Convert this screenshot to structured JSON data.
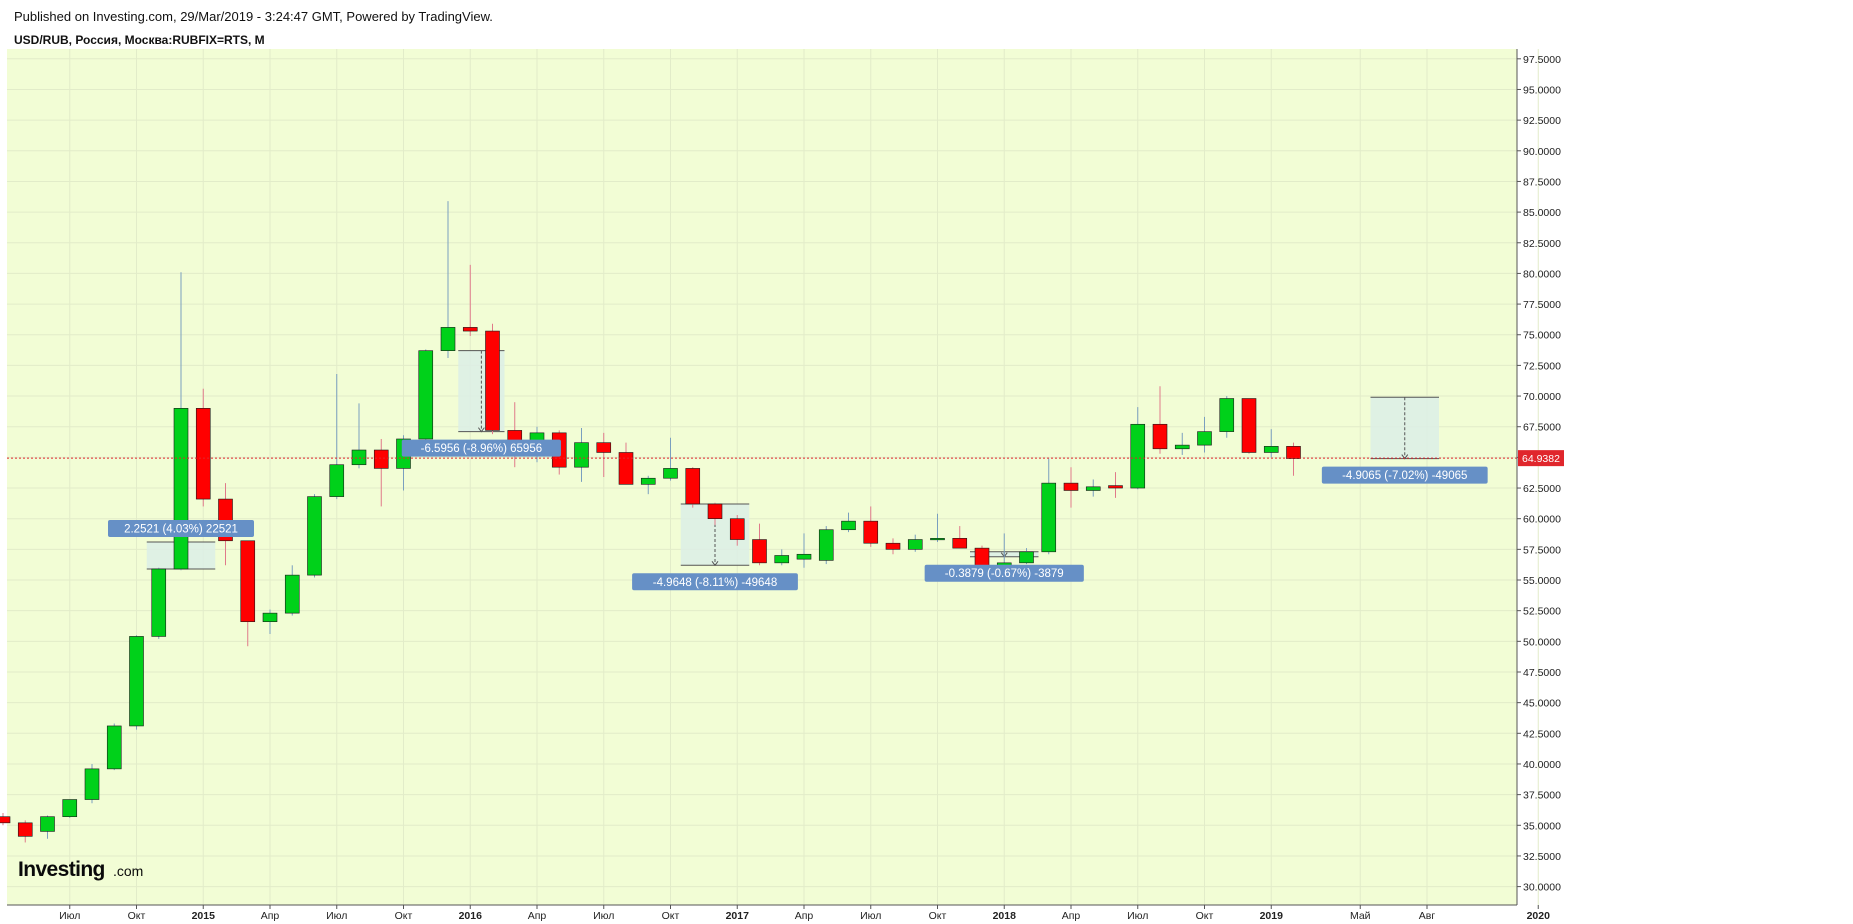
{
  "header": {
    "published": "Published on Investing.com, 29/Mar/2019 - 3:24:47 GMT, Powered by TradingView.",
    "symbol": "USD/RUB, Россия, Москва:RUBFIX=RTS, M"
  },
  "logo": {
    "main": "Investing",
    "suffix": ".com"
  },
  "colors": {
    "background": "#f2fdd5",
    "up": "#00d11a",
    "down": "#ff0000",
    "price_line": "#e0262c",
    "measure_label": "#6690c6",
    "measure_zone": "#dcefe6"
  },
  "chart_data": {
    "type": "candlestick",
    "timeframe": "M",
    "ylim": [
      28.5,
      98.3
    ],
    "y_ticks": [
      "97.5000",
      "95.0000",
      "92.5000",
      "90.0000",
      "87.5000",
      "85.0000",
      "82.5000",
      "80.0000",
      "77.5000",
      "75.0000",
      "72.5000",
      "70.0000",
      "67.5000",
      "65.0000",
      "62.5000",
      "60.0000",
      "57.5000",
      "55.0000",
      "52.5000",
      "50.0000",
      "47.5000",
      "45.0000",
      "42.5000",
      "40.0000",
      "37.5000",
      "35.0000",
      "32.5000",
      "30.0000"
    ],
    "x_ticks": [
      {
        "label": "Июл",
        "bold": false
      },
      {
        "label": "Окт",
        "bold": false
      },
      {
        "label": "2015",
        "bold": true
      },
      {
        "label": "Апр",
        "bold": false
      },
      {
        "label": "Июл",
        "bold": false
      },
      {
        "label": "Окт",
        "bold": false
      },
      {
        "label": "2016",
        "bold": true
      },
      {
        "label": "Апр",
        "bold": false
      },
      {
        "label": "Июл",
        "bold": false
      },
      {
        "label": "Окт",
        "bold": false
      },
      {
        "label": "2017",
        "bold": true
      },
      {
        "label": "Апр",
        "bold": false
      },
      {
        "label": "Июл",
        "bold": false
      },
      {
        "label": "Окт",
        "bold": false
      },
      {
        "label": "2018",
        "bold": true
      },
      {
        "label": "Апр",
        "bold": false
      },
      {
        "label": "Июл",
        "bold": false
      },
      {
        "label": "Окт",
        "bold": false
      },
      {
        "label": "2019",
        "bold": true
      },
      {
        "label": "Май",
        "bold": false
      },
      {
        "label": "Авг",
        "bold": false
      },
      {
        "label": "2020",
        "bold": true
      }
    ],
    "last_price": "64.9382",
    "last_price_value": 64.9382,
    "candles": [
      {
        "t": "2014-04",
        "o": 35.7,
        "h": 36.0,
        "l": 35.0,
        "c": 35.2
      },
      {
        "t": "2014-05",
        "o": 35.2,
        "h": 35.4,
        "l": 33.6,
        "c": 34.1
      },
      {
        "t": "2014-06",
        "o": 34.5,
        "h": 35.8,
        "l": 33.9,
        "c": 35.7
      },
      {
        "t": "2014-07",
        "o": 35.7,
        "h": 37.1,
        "l": 35.6,
        "c": 37.1
      },
      {
        "t": "2014-08",
        "o": 37.1,
        "h": 40.0,
        "l": 36.8,
        "c": 39.6
      },
      {
        "t": "2014-09",
        "o": 39.6,
        "h": 43.3,
        "l": 39.5,
        "c": 43.1
      },
      {
        "t": "2014-10",
        "o": 43.1,
        "h": 50.5,
        "l": 42.8,
        "c": 50.4
      },
      {
        "t": "2014-11",
        "o": 50.4,
        "h": 56.0,
        "l": 50.2,
        "c": 55.9
      },
      {
        "t": "2014-12",
        "o": 55.9,
        "h": 80.1,
        "l": 55.8,
        "c": 69.0
      },
      {
        "t": "2015-01",
        "o": 69.0,
        "h": 70.6,
        "l": 61.0,
        "c": 61.6
      },
      {
        "t": "2015-02",
        "o": 61.6,
        "h": 62.9,
        "l": 56.2,
        "c": 58.2
      },
      {
        "t": "2015-03",
        "o": 58.2,
        "h": 58.2,
        "l": 49.6,
        "c": 51.6
      },
      {
        "t": "2015-04",
        "o": 51.6,
        "h": 52.6,
        "l": 50.6,
        "c": 52.3
      },
      {
        "t": "2015-05",
        "o": 52.3,
        "h": 56.2,
        "l": 52.1,
        "c": 55.4
      },
      {
        "t": "2015-06",
        "o": 55.4,
        "h": 62.0,
        "l": 55.2,
        "c": 61.8
      },
      {
        "t": "2015-07",
        "o": 61.8,
        "h": 71.8,
        "l": 61.6,
        "c": 64.4
      },
      {
        "t": "2015-08",
        "o": 64.4,
        "h": 69.4,
        "l": 64.1,
        "c": 65.6
      },
      {
        "t": "2015-09",
        "o": 65.6,
        "h": 66.5,
        "l": 61.0,
        "c": 64.1
      },
      {
        "t": "2015-10",
        "o": 64.1,
        "h": 66.8,
        "l": 62.3,
        "c": 66.5
      },
      {
        "t": "2015-11",
        "o": 66.5,
        "h": 73.8,
        "l": 66.3,
        "c": 73.7
      },
      {
        "t": "2015-12",
        "o": 73.7,
        "h": 85.9,
        "l": 73.1,
        "c": 75.6
      },
      {
        "t": "2016-01",
        "o": 75.6,
        "h": 80.7,
        "l": 74.9,
        "c": 75.3
      },
      {
        "t": "2016-02",
        "o": 75.3,
        "h": 75.9,
        "l": 66.9,
        "c": 67.2
      },
      {
        "t": "2016-03",
        "o": 67.2,
        "h": 69.5,
        "l": 64.2,
        "c": 65.1
      },
      {
        "t": "2016-04",
        "o": 65.1,
        "h": 67.5,
        "l": 64.6,
        "c": 67.0
      },
      {
        "t": "2016-05",
        "o": 67.0,
        "h": 67.2,
        "l": 63.6,
        "c": 64.2
      },
      {
        "t": "2016-06",
        "o": 64.2,
        "h": 67.4,
        "l": 63.0,
        "c": 66.2
      },
      {
        "t": "2016-07",
        "o": 66.2,
        "h": 67.0,
        "l": 63.4,
        "c": 65.4
      },
      {
        "t": "2016-08",
        "o": 65.4,
        "h": 66.2,
        "l": 62.8,
        "c": 62.8
      },
      {
        "t": "2016-09",
        "o": 62.8,
        "h": 63.5,
        "l": 62.0,
        "c": 63.3
      },
      {
        "t": "2016-10",
        "o": 63.3,
        "h": 66.6,
        "l": 63.1,
        "c": 64.1
      },
      {
        "t": "2016-11",
        "o": 64.1,
        "h": 64.2,
        "l": 60.9,
        "c": 61.2
      },
      {
        "t": "2016-12",
        "o": 61.2,
        "h": 61.3,
        "l": 59.5,
        "c": 60.0
      },
      {
        "t": "2017-01",
        "o": 60.0,
        "h": 60.3,
        "l": 57.8,
        "c": 58.3
      },
      {
        "t": "2017-02",
        "o": 58.3,
        "h": 59.6,
        "l": 56.2,
        "c": 56.4
      },
      {
        "t": "2017-03",
        "o": 56.4,
        "h": 57.5,
        "l": 56.2,
        "c": 57.0
      },
      {
        "t": "2017-04",
        "o": 56.7,
        "h": 58.8,
        "l": 56.0,
        "c": 57.1
      },
      {
        "t": "2017-05",
        "o": 56.6,
        "h": 59.4,
        "l": 56.3,
        "c": 59.1
      },
      {
        "t": "2017-06",
        "o": 59.1,
        "h": 60.5,
        "l": 58.9,
        "c": 59.8
      },
      {
        "t": "2017-07",
        "o": 59.8,
        "h": 61.0,
        "l": 57.7,
        "c": 58.0
      },
      {
        "t": "2017-08",
        "o": 58.0,
        "h": 58.4,
        "l": 57.1,
        "c": 57.5
      },
      {
        "t": "2017-09",
        "o": 57.5,
        "h": 58.7,
        "l": 57.3,
        "c": 58.3
      },
      {
        "t": "2017-10",
        "o": 58.3,
        "h": 60.4,
        "l": 58.1,
        "c": 58.4
      },
      {
        "t": "2017-11",
        "o": 58.4,
        "h": 59.4,
        "l": 57.6,
        "c": 57.6
      },
      {
        "t": "2017-12",
        "o": 57.6,
        "h": 57.8,
        "l": 55.9,
        "c": 56.2
      },
      {
        "t": "2018-01",
        "o": 56.2,
        "h": 58.8,
        "l": 55.7,
        "c": 56.4
      },
      {
        "t": "2018-02",
        "o": 56.4,
        "h": 57.6,
        "l": 56.3,
        "c": 57.3
      },
      {
        "t": "2018-03",
        "o": 57.3,
        "h": 64.9,
        "l": 57.1,
        "c": 62.9
      },
      {
        "t": "2018-04",
        "o": 62.9,
        "h": 64.2,
        "l": 60.9,
        "c": 62.3
      },
      {
        "t": "2018-05",
        "o": 62.3,
        "h": 63.2,
        "l": 61.8,
        "c": 62.6
      },
      {
        "t": "2018-06",
        "o": 62.7,
        "h": 63.8,
        "l": 61.7,
        "c": 62.5
      },
      {
        "t": "2018-07",
        "o": 62.5,
        "h": 69.1,
        "l": 62.4,
        "c": 67.7
      },
      {
        "t": "2018-08",
        "o": 67.7,
        "h": 70.8,
        "l": 65.3,
        "c": 65.7
      },
      {
        "t": "2018-09",
        "o": 65.7,
        "h": 67.0,
        "l": 65.2,
        "c": 66.0
      },
      {
        "t": "2018-10",
        "o": 66.0,
        "h": 68.3,
        "l": 65.4,
        "c": 67.1
      },
      {
        "t": "2018-11",
        "o": 67.1,
        "h": 70.0,
        "l": 66.6,
        "c": 69.8
      },
      {
        "t": "2018-12",
        "o": 69.8,
        "h": 69.8,
        "l": 65.3,
        "c": 65.4
      },
      {
        "t": "2019-01",
        "o": 65.4,
        "h": 67.3,
        "l": 65.0,
        "c": 65.9
      },
      {
        "t": "2019-02",
        "o": 65.9,
        "h": 66.2,
        "l": 63.5,
        "c": 64.9
      }
    ],
    "measurements": [
      {
        "label": "2.2521 (4.03%) 22521",
        "from": 55.9,
        "to": 58.1,
        "start": "2014-11",
        "end": "2015-01"
      },
      {
        "label": "-6.5956 (-8.96%) 65956",
        "from": 73.7,
        "to": 67.1,
        "start": "2016-01",
        "end": "2016-02"
      },
      {
        "label": "-4.9648 (-8.11%) -49648",
        "from": 61.2,
        "to": 56.2,
        "start": "2016-11",
        "end": "2017-01"
      },
      {
        "label": "-0.3879 (-0.67%) -3879",
        "from": 57.3,
        "to": 56.9,
        "start": "2017-12",
        "end": "2018-02"
      },
      {
        "label": "-4.9065 (-7.02%) -49065",
        "from": 69.9,
        "to": 64.9,
        "start": "2019-06",
        "end": "2019-08"
      }
    ]
  }
}
